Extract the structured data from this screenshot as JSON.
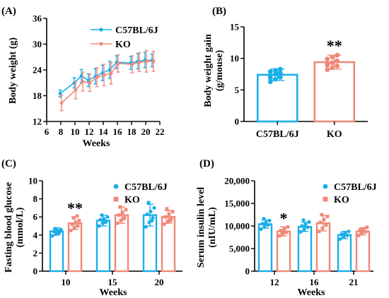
{
  "colors": {
    "wt": "#1aaee8",
    "ko": "#f08878",
    "axis": "#000000"
  },
  "chart_data": [
    {
      "panel": "(A)",
      "type": "line",
      "xlabel": "Weeks",
      "ylabel": "Body weight (g)",
      "xlim": [
        6,
        22
      ],
      "ylim": [
        12,
        36
      ],
      "xticks": [
        "6",
        "8",
        "10",
        "12",
        "14",
        "16",
        "18",
        "20",
        "22"
      ],
      "yticks": [
        "12",
        "18",
        "24",
        "30",
        "36"
      ],
      "x": [
        8,
        10,
        11,
        12,
        13,
        14,
        15,
        16,
        18,
        19,
        20,
        21
      ],
      "legend_position": "top-center",
      "series": [
        {
          "name": "C57BL/6J",
          "color": "#1aaee8",
          "values": [
            18.5,
            21.0,
            22.6,
            21.6,
            22.5,
            23.3,
            24.0,
            25.8,
            25.6,
            26.0,
            26.3,
            26.2
          ],
          "errors": [
            0.8,
            1.2,
            1.5,
            1.5,
            1.8,
            1.8,
            2.0,
            1.5,
            1.5,
            1.8,
            1.8,
            1.5
          ]
        },
        {
          "name": "KO",
          "color": "#f08878",
          "values": [
            16.3,
            19.3,
            21.3,
            21.0,
            22.3,
            22.8,
            23.2,
            25.5,
            25.3,
            25.8,
            26.0,
            26.0
          ],
          "errors": [
            1.8,
            2.0,
            2.2,
            2.0,
            2.2,
            2.5,
            2.5,
            2.0,
            2.0,
            2.2,
            2.5,
            2.3
          ]
        }
      ]
    },
    {
      "panel": "(B)",
      "type": "bar",
      "ylabel": "Body weight gain",
      "ylabel2": "(g/mouse)",
      "categories": [
        "C57BL/6J",
        "KO"
      ],
      "yticks": [
        "0",
        "5",
        "10",
        "15"
      ],
      "ylim": [
        0,
        15
      ],
      "values": [
        7.4,
        9.4
      ],
      "errors": [
        0.9,
        1.1
      ],
      "colors": [
        "#1aaee8",
        "#f08878"
      ],
      "points": [
        [
          6.3,
          6.7,
          7.0,
          7.2,
          7.5,
          7.7,
          7.9,
          8.1,
          8.3,
          6.9
        ],
        [
          8.2,
          8.5,
          8.8,
          9.1,
          9.3,
          9.6,
          9.9,
          10.2,
          10.5,
          8.9
        ]
      ],
      "annotations": [
        {
          "text": "**",
          "category": 1
        }
      ]
    },
    {
      "panel": "(C)",
      "type": "bar",
      "ylabel": "Fasting blood glucose",
      "ylabel2": "(mmol/L)",
      "xlabel": "Weeks",
      "categories": [
        "10",
        "15",
        "20"
      ],
      "ylim": [
        0,
        10
      ],
      "yticks": [
        "0",
        "2",
        "4",
        "6",
        "8",
        "10"
      ],
      "legend_position": "top-center",
      "series": [
        {
          "name": "C57BL/6J",
          "color": "#1aaee8",
          "values": [
            4.4,
            5.6,
            6.2
          ],
          "errors": [
            0.4,
            0.6,
            1.2
          ],
          "points": [
            [
              3.9,
              4.1,
              4.3,
              4.4,
              4.5,
              4.6,
              4.7,
              4.2
            ],
            [
              5.0,
              5.3,
              5.5,
              5.7,
              5.8,
              6.0,
              6.2,
              5.4
            ],
            [
              4.9,
              5.4,
              5.9,
              6.3,
              6.6,
              7.0,
              7.6,
              5.6
            ]
          ]
        },
        {
          "name": "KO",
          "color": "#f08878",
          "values": [
            5.3,
            6.2,
            6.0
          ],
          "errors": [
            0.7,
            0.9,
            0.7
          ],
          "points": [
            [
              4.5,
              4.8,
              5.0,
              5.2,
              5.4,
              5.6,
              5.9,
              6.1
            ],
            [
              5.3,
              5.6,
              5.9,
              6.2,
              6.5,
              6.8,
              7.1,
              5.8
            ],
            [
              5.2,
              5.5,
              5.8,
              6.0,
              6.3,
              6.6,
              6.9,
              5.6
            ]
          ]
        }
      ],
      "annotations": [
        {
          "text": "**",
          "category": 0
        }
      ]
    },
    {
      "panel": "(D)",
      "type": "bar",
      "ylabel": "Serum insulin level",
      "ylabel2": "(nIU/mL)",
      "xlabel": "Weeks",
      "categories": [
        "12",
        "16",
        "21"
      ],
      "ylim": [
        0,
        20000
      ],
      "yticks": [
        "0",
        "5,000",
        "10,000",
        "15,000",
        "20,000"
      ],
      "legend_position": "top-center",
      "series": [
        {
          "name": "C57BL/6J",
          "color": "#1aaee8",
          "values": [
            10400,
            9800,
            8000
          ],
          "errors": [
            900,
            1000,
            800
          ],
          "points": [
            [
              9300,
              9800,
              10200,
              10500,
              10800,
              11200,
              11600
            ],
            [
              8700,
              9200,
              9700,
              10000,
              10400,
              10900,
              11300
            ],
            [
              7100,
              7500,
              7900,
              8200,
              8500,
              8800,
              7700
            ]
          ]
        },
        {
          "name": "KO",
          "color": "#f08878",
          "values": [
            8800,
            10600,
            8800
          ],
          "errors": [
            1000,
            1700,
            800
          ],
          "points": [
            [
              7800,
              8200,
              8600,
              9000,
              9400,
              9800,
              8400
            ],
            [
              8800,
              9500,
              10200,
              10800,
              11400,
              12100,
              12500
            ],
            [
              7900,
              8300,
              8700,
              9100,
              9400,
              9700,
              8500
            ]
          ]
        }
      ],
      "annotations": [
        {
          "text": "*",
          "category": 0
        }
      ]
    }
  ]
}
